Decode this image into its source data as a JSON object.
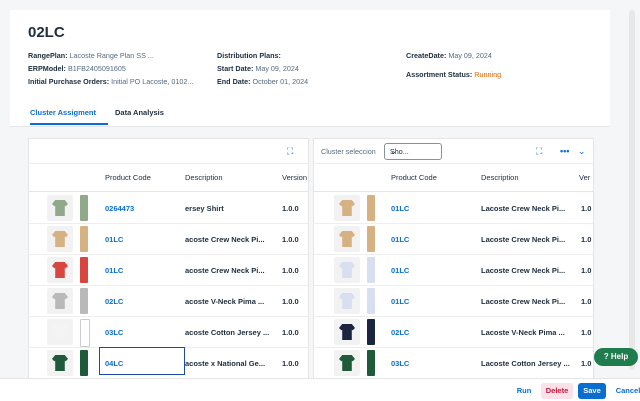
{
  "header": {
    "title": "02LC",
    "range_plan_label": "RangePlan:",
    "range_plan_value": "Lacoste Range Plan SS ...",
    "erp_model_label": "ERPModel:",
    "erp_model_value": "B1FB2405091605",
    "ipo_label": "Initial Purchase Orders:",
    "ipo_value": "Initial PO Lacoste, 0102...",
    "dist_plans_label": "Distribution Plans:",
    "start_date_label": "Start Date:",
    "start_date_value": "May 09, 2024",
    "end_date_label": "End Date:",
    "end_date_value": "October 01, 2024",
    "create_date_label": "CreateDate:",
    "create_date_value": "May 09, 2024",
    "status_label": "Assortment Status:",
    "status_value": "Running"
  },
  "tabs": [
    "Cluster Assigment",
    "Data Analysis"
  ],
  "left_table": {
    "headers": {
      "code": "Product Code",
      "desc": "Description",
      "ver": "Version"
    },
    "rows": [
      {
        "code": "0264473",
        "desc": "ersey Shirt",
        "ver": "1.0.0",
        "color": "#8fa98a",
        "swatch": "#8fa98a"
      },
      {
        "code": "01LC",
        "desc": "acoste Crew Neck Pi...",
        "ver": "1.0.0",
        "color": "#d6b283",
        "swatch": "#d6b283"
      },
      {
        "code": "01LC",
        "desc": "acoste Crew Neck Pi...",
        "ver": "1.0.0",
        "color": "#d9453f",
        "swatch": "#d9453f"
      },
      {
        "code": "02LC",
        "desc": "acoste V-Neck Pima ...",
        "ver": "1.0.0",
        "color": "#b9b9b9",
        "swatch": "#b9b9b9"
      },
      {
        "code": "03LC",
        "desc": "acoste Cotton Jersey ...",
        "ver": "1.0.0",
        "color": "#f4f4f4",
        "swatch": "#ffffff"
      },
      {
        "code": "04LC",
        "desc": "acoste x National Ge...",
        "ver": "1.0.0",
        "color": "#1f5b3a",
        "swatch": "#1f5b3a"
      }
    ]
  },
  "right_panel": {
    "cluster_label": "Cluster seleccion",
    "select_value": "Sho...",
    "more_icon": "more-icon",
    "headers": {
      "code": "Product Code",
      "desc": "Description",
      "ver": "Ver"
    },
    "rows": [
      {
        "code": "01LC",
        "desc": "Lacoste Crew Neck Pi...",
        "ver": "1.0",
        "color": "#d6b283",
        "swatch": "#d6b283"
      },
      {
        "code": "01LC",
        "desc": "Lacoste Crew Neck Pi...",
        "ver": "1.0",
        "color": "#d6b283",
        "swatch": "#d6b283"
      },
      {
        "code": "01LC",
        "desc": "Lacoste Crew Neck Pi...",
        "ver": "1.0",
        "color": "#d7dff0",
        "swatch": "#d7dff0"
      },
      {
        "code": "01LC",
        "desc": "Lacoste Crew Neck Pi...",
        "ver": "1.0",
        "color": "#d7dff0",
        "swatch": "#d7dff0"
      },
      {
        "code": "02LC",
        "desc": "Lacoste V-Neck Pima ...",
        "ver": "1.0",
        "color": "#1c2540",
        "swatch": "#1c2540"
      },
      {
        "code": "03LC",
        "desc": "Lacoste Cotton Jersey ...",
        "ver": "1.0",
        "color": "#1f5b3a",
        "swatch": "#1f5b3a"
      }
    ]
  },
  "footer": {
    "run": "Run",
    "delete": "Delete",
    "save": "Save",
    "cancel": "Cancel"
  },
  "help": {
    "label": "Help"
  },
  "colors": {
    "accent": "#0a6ed1",
    "status_running": "#e76500",
    "delete_bg": "#fbe1ea",
    "help_bg": "#1e7c4d"
  }
}
